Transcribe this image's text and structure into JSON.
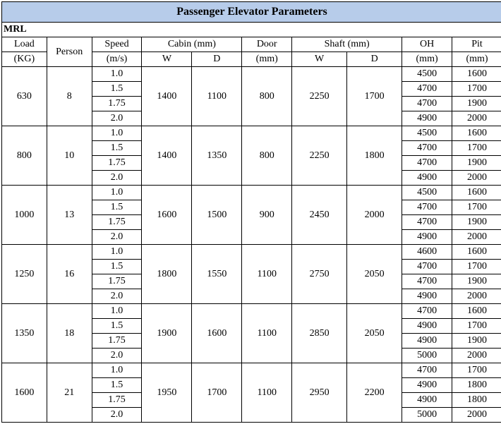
{
  "title": "Passenger Elevator Parameters",
  "subtitle": "MRL",
  "headers": {
    "load_top": "Load",
    "load_sub": "(KG)",
    "person": "Person",
    "speed_top": "Speed",
    "speed_sub": "(m/s)",
    "cabin_top": "Cabin (mm)",
    "cabin_w": "W",
    "cabin_d": "D",
    "door_top": "Door",
    "door_sub": "(mm)",
    "shaft_top": "Shaft (mm)",
    "shaft_w": "W",
    "shaft_d": "D",
    "oh_top": "OH",
    "oh_sub": "(mm)",
    "pit_top": "Pit",
    "pit_sub": "(mm)"
  },
  "groups": [
    {
      "load": "630",
      "person": "8",
      "cabin_w": "1400",
      "cabin_d": "1100",
      "door": "800",
      "shaft_w": "2250",
      "shaft_d": "1700",
      "rows": [
        {
          "speed": "1.0",
          "oh": "4500",
          "pit": "1600"
        },
        {
          "speed": "1.5",
          "oh": "4700",
          "pit": "1700"
        },
        {
          "speed": "1.75",
          "oh": "4700",
          "pit": "1900"
        },
        {
          "speed": "2.0",
          "oh": "4900",
          "pit": "2000"
        }
      ]
    },
    {
      "load": "800",
      "person": "10",
      "cabin_w": "1400",
      "cabin_d": "1350",
      "door": "800",
      "shaft_w": "2250",
      "shaft_d": "1800",
      "rows": [
        {
          "speed": "1.0",
          "oh": "4500",
          "pit": "1600"
        },
        {
          "speed": "1.5",
          "oh": "4700",
          "pit": "1700"
        },
        {
          "speed": "1.75",
          "oh": "4700",
          "pit": "1900"
        },
        {
          "speed": "2.0",
          "oh": "4900",
          "pit": "2000"
        }
      ]
    },
    {
      "load": "1000",
      "person": "13",
      "cabin_w": "1600",
      "cabin_d": "1500",
      "door": "900",
      "shaft_w": "2450",
      "shaft_d": "2000",
      "rows": [
        {
          "speed": "1.0",
          "oh": "4500",
          "pit": "1600"
        },
        {
          "speed": "1.5",
          "oh": "4700",
          "pit": "1700"
        },
        {
          "speed": "1.75",
          "oh": "4700",
          "pit": "1900"
        },
        {
          "speed": "2.0",
          "oh": "4900",
          "pit": "2000"
        }
      ]
    },
    {
      "load": "1250",
      "person": "16",
      "cabin_w": "1800",
      "cabin_d": "1550",
      "door": "1100",
      "shaft_w": "2750",
      "shaft_d": "2050",
      "rows": [
        {
          "speed": "1.0",
          "oh": "4600",
          "pit": "1600"
        },
        {
          "speed": "1.5",
          "oh": "4700",
          "pit": "1700"
        },
        {
          "speed": "1.75",
          "oh": "4700",
          "pit": "1900"
        },
        {
          "speed": "2.0",
          "oh": "4900",
          "pit": "2000"
        }
      ]
    },
    {
      "load": "1350",
      "person": "18",
      "cabin_w": "1900",
      "cabin_d": "1600",
      "door": "1100",
      "shaft_w": "2850",
      "shaft_d": "2050",
      "rows": [
        {
          "speed": "1.0",
          "oh": "4700",
          "pit": "1600"
        },
        {
          "speed": "1.5",
          "oh": "4900",
          "pit": "1700"
        },
        {
          "speed": "1.75",
          "oh": "4900",
          "pit": "1900"
        },
        {
          "speed": "2.0",
          "oh": "5000",
          "pit": "2000"
        }
      ]
    },
    {
      "load": "1600",
      "person": "21",
      "cabin_w": "1950",
      "cabin_d": "1700",
      "door": "1100",
      "shaft_w": "2950",
      "shaft_d": "2200",
      "rows": [
        {
          "speed": "1.0",
          "oh": "4700",
          "pit": "1700"
        },
        {
          "speed": "1.5",
          "oh": "4900",
          "pit": "1800"
        },
        {
          "speed": "1.75",
          "oh": "4900",
          "pit": "1800"
        },
        {
          "speed": "2.0",
          "oh": "5000",
          "pit": "2000"
        }
      ]
    }
  ]
}
